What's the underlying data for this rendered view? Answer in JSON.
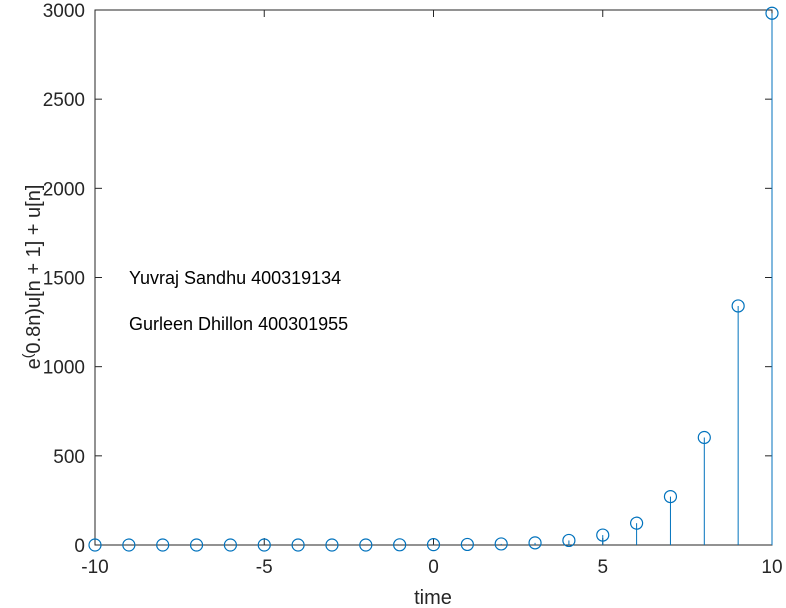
{
  "chart_data": {
    "type": "stem",
    "x": [
      -10,
      -9,
      -8,
      -7,
      -6,
      -5,
      -4,
      -3,
      -2,
      -1,
      0,
      1,
      2,
      3,
      4,
      5,
      6,
      7,
      8,
      9,
      10
    ],
    "series": [
      {
        "values": [
          0,
          0,
          0,
          0,
          0,
          0,
          0,
          0,
          0,
          1,
          2,
          3.23,
          5.95,
          12.02,
          25.53,
          55.6,
          122.51,
          271.43,
          602.85,
          1340.43,
          2981.96
        ]
      }
    ],
    "xlim": [
      -10,
      10
    ],
    "ylim": [
      0,
      3000
    ],
    "xticks": [
      -10,
      -5,
      0,
      5,
      10
    ],
    "yticks": [
      0,
      500,
      1000,
      1500,
      2000,
      2500,
      3000
    ],
    "xtick_labels": [
      "-10",
      "-5",
      "0",
      "5",
      "10"
    ],
    "ytick_labels": [
      "0",
      "500",
      "1000",
      "1500",
      "2000",
      "2500",
      "3000"
    ],
    "xlabel": "time",
    "ylabel_base": "e",
    "ylabel_superscript": "(",
    "ylabel_rest": "0.8n)u[n + 1] + u[n]",
    "grid": false,
    "box": true,
    "color": "#0072BD",
    "annotations": [
      "Yuvraj Sandhu 400319134",
      "Gurleen Dhillon 400301955"
    ]
  }
}
